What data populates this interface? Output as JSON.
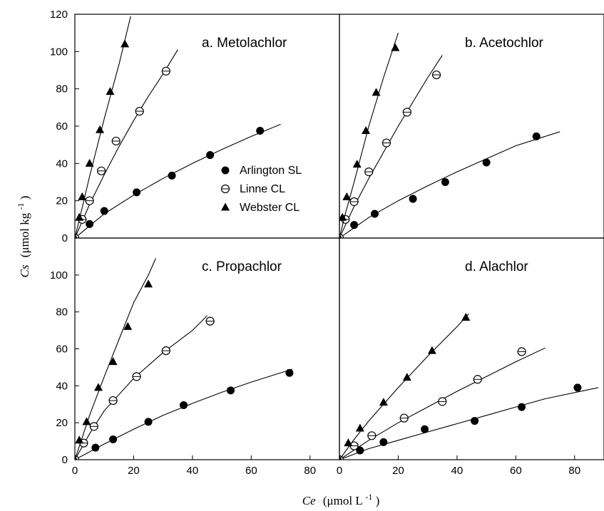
{
  "figure": {
    "ylabel_main": "Cs",
    "ylabel_unit": "(μmol kg",
    "ylabel_exp": "-1",
    "ylabel_close": ")",
    "xlabel_main": "Ce",
    "xlabel_unit": "(μmol L",
    "xlabel_exp": "-1",
    "xlabel_close": ")"
  },
  "legend": [
    {
      "label": "Arlington SL",
      "marker": "filled-circle"
    },
    {
      "label": "Linne CL",
      "marker": "open-circle"
    },
    {
      "label": "Webster CL",
      "marker": "filled-triangle"
    }
  ],
  "chart_data": [
    {
      "type": "scatter",
      "title": "a.  Metolachlor",
      "xlim": [
        0,
        90
      ],
      "ylim": [
        0,
        120
      ],
      "xticks": [],
      "yticks": [
        0,
        20,
        40,
        60,
        80,
        100,
        120
      ],
      "series": [
        {
          "name": "Arlington SL",
          "marker": "filled-circle",
          "points": [
            [
              0,
              0
            ],
            [
              5,
              7.5
            ],
            [
              10,
              14.5
            ],
            [
              21,
              24.5
            ],
            [
              33,
              33.5
            ],
            [
              46,
              44.5
            ],
            [
              63,
              57.5
            ]
          ],
          "fit": [
            [
              0,
              0
            ],
            [
              10,
              13
            ],
            [
              20,
              23
            ],
            [
              30,
              32
            ],
            [
              40,
              40
            ],
            [
              50,
              47.5
            ],
            [
              60,
              54.5
            ],
            [
              70,
              61
            ]
          ]
        },
        {
          "name": "Linne CL",
          "marker": "open-circle",
          "points": [
            [
              0,
              0
            ],
            [
              2.5,
              10
            ],
            [
              5,
              20
            ],
            [
              9,
              36
            ],
            [
              14,
              52
            ],
            [
              22,
              68
            ],
            [
              31,
              89.5
            ]
          ],
          "fit": [
            [
              0,
              0
            ],
            [
              5,
              18
            ],
            [
              10,
              34
            ],
            [
              15,
              49
            ],
            [
              20,
              63
            ],
            [
              25,
              76
            ],
            [
              30,
              88
            ],
            [
              35,
              101
            ]
          ]
        },
        {
          "name": "Webster CL",
          "marker": "filled-triangle",
          "points": [
            [
              0,
              0
            ],
            [
              1.5,
              11
            ],
            [
              2.5,
              22
            ],
            [
              5,
              40
            ],
            [
              8.5,
              58
            ],
            [
              12,
              78.5
            ],
            [
              17,
              104
            ]
          ],
          "fit": [
            [
              0,
              0
            ],
            [
              2,
              13
            ],
            [
              5,
              33
            ],
            [
              10,
              64
            ],
            [
              15,
              93
            ],
            [
              19,
              119
            ]
          ]
        }
      ]
    },
    {
      "type": "scatter",
      "title": "b.  Acetochlor",
      "xlim": [
        0,
        90
      ],
      "ylim": [
        0,
        120
      ],
      "xticks": [],
      "yticks": [],
      "series": [
        {
          "name": "Arlington SL",
          "marker": "filled-circle",
          "points": [
            [
              0,
              0
            ],
            [
              5,
              7
            ],
            [
              12,
              13
            ],
            [
              25,
              21
            ],
            [
              36,
              30
            ],
            [
              50,
              40.5
            ],
            [
              67,
              54.5
            ]
          ],
          "fit": [
            [
              0,
              0
            ],
            [
              10,
              11
            ],
            [
              20,
              20
            ],
            [
              30,
              28
            ],
            [
              40,
              35.5
            ],
            [
              50,
              42.5
            ],
            [
              60,
              49.5
            ],
            [
              75,
              57
            ]
          ]
        },
        {
          "name": "Linne CL",
          "marker": "open-circle",
          "points": [
            [
              0,
              0
            ],
            [
              2,
              10
            ],
            [
              5,
              19.5
            ],
            [
              10,
              35.5
            ],
            [
              16,
              51
            ],
            [
              23,
              67.5
            ],
            [
              33,
              87.5
            ]
          ],
          "fit": [
            [
              0,
              0
            ],
            [
              5,
              17
            ],
            [
              10,
              32
            ],
            [
              15,
              46
            ],
            [
              20,
              60
            ],
            [
              25,
              73
            ],
            [
              30,
              86
            ],
            [
              35,
              98
            ]
          ]
        },
        {
          "name": "Webster CL",
          "marker": "filled-triangle",
          "points": [
            [
              0,
              0
            ],
            [
              1,
              11
            ],
            [
              2.5,
              22
            ],
            [
              6,
              39.5
            ],
            [
              9,
              57.5
            ],
            [
              12.5,
              78
            ],
            [
              19,
              102
            ]
          ],
          "fit": [
            [
              0,
              0
            ],
            [
              2,
              13
            ],
            [
              5,
              30
            ],
            [
              10,
              60
            ],
            [
              15,
              86
            ],
            [
              20,
              110
            ]
          ]
        }
      ]
    },
    {
      "type": "scatter",
      "title": "c.  Propachlor",
      "xlim": [
        0,
        90
      ],
      "ylim": [
        0,
        120
      ],
      "xticks": [
        0,
        20,
        40,
        60,
        80
      ],
      "yticks": [
        0,
        20,
        40,
        60,
        80,
        100
      ],
      "series": [
        {
          "name": "Arlington SL",
          "marker": "filled-circle",
          "points": [
            [
              0,
              0
            ],
            [
              7,
              6.5
            ],
            [
              13,
              11
            ],
            [
              25,
              20.5
            ],
            [
              37,
              29.5
            ],
            [
              53,
              37.5
            ],
            [
              73,
              47
            ]
          ],
          "fit": [
            [
              0,
              0
            ],
            [
              10,
              8.5
            ],
            [
              20,
              16.5
            ],
            [
              30,
              24
            ],
            [
              40,
              30.5
            ],
            [
              50,
              36.5
            ],
            [
              60,
              42
            ],
            [
              74,
              49
            ]
          ]
        },
        {
          "name": "Linne CL",
          "marker": "open-circle",
          "points": [
            [
              0,
              0
            ],
            [
              3,
              9
            ],
            [
              6.5,
              18
            ],
            [
              13,
              32
            ],
            [
              21,
              45
            ],
            [
              31,
              59
            ],
            [
              46,
              75
            ]
          ],
          "fit": [
            [
              0,
              0
            ],
            [
              5,
              14
            ],
            [
              10,
              26.5
            ],
            [
              20,
              44
            ],
            [
              30,
              58
            ],
            [
              40,
              70
            ],
            [
              45,
              78
            ]
          ]
        },
        {
          "name": "Webster CL",
          "marker": "filled-triangle",
          "points": [
            [
              0,
              0
            ],
            [
              1.5,
              10.5
            ],
            [
              4,
              20.5
            ],
            [
              8,
              39
            ],
            [
              13,
              53
            ],
            [
              18,
              72
            ],
            [
              25,
              95
            ]
          ],
          "fit": [
            [
              0,
              0
            ],
            [
              5,
              24
            ],
            [
              10,
              45
            ],
            [
              15,
              65
            ],
            [
              20,
              85
            ],
            [
              25,
              100
            ],
            [
              27.5,
              109
            ]
          ]
        }
      ]
    },
    {
      "type": "scatter",
      "title": "d.  Alachlor",
      "xlim": [
        0,
        90
      ],
      "ylim": [
        0,
        120
      ],
      "xticks": [
        0,
        20,
        40,
        60,
        80
      ],
      "yticks": [],
      "series": [
        {
          "name": "Arlington SL",
          "marker": "filled-circle",
          "points": [
            [
              0,
              0
            ],
            [
              7,
              5
            ],
            [
              15,
              9.5
            ],
            [
              29,
              16.5
            ],
            [
              46,
              21
            ],
            [
              62,
              28.5
            ],
            [
              81,
              39
            ]
          ],
          "fit": [
            [
              0,
              0
            ],
            [
              10,
              6
            ],
            [
              20,
              10.5
            ],
            [
              30,
              15
            ],
            [
              40,
              19.5
            ],
            [
              50,
              24
            ],
            [
              60,
              28.5
            ],
            [
              70,
              33
            ],
            [
              88,
              39
            ]
          ]
        },
        {
          "name": "Linne CL",
          "marker": "open-circle",
          "points": [
            [
              0,
              0
            ],
            [
              5,
              7.5
            ],
            [
              11,
              13
            ],
            [
              22,
              22.5
            ],
            [
              35,
              31.5
            ],
            [
              47,
              43.5
            ],
            [
              62,
              58.5
            ]
          ],
          "fit": [
            [
              0,
              0
            ],
            [
              10,
              10.5
            ],
            [
              20,
              20
            ],
            [
              30,
              28.5
            ],
            [
              40,
              37
            ],
            [
              50,
              45
            ],
            [
              60,
              53
            ],
            [
              70,
              60.5
            ]
          ]
        },
        {
          "name": "Webster CL",
          "marker": "filled-triangle",
          "points": [
            [
              0,
              0
            ],
            [
              3,
              9
            ],
            [
              7,
              17
            ],
            [
              15,
              31
            ],
            [
              23,
              44.5
            ],
            [
              31.5,
              59
            ],
            [
              43,
              77
            ]
          ],
          "fit": [
            [
              0,
              0
            ],
            [
              5,
              11
            ],
            [
              10,
              21
            ],
            [
              20,
              39
            ],
            [
              30,
              56
            ],
            [
              40,
              72
            ],
            [
              44,
              79
            ]
          ]
        }
      ]
    }
  ]
}
